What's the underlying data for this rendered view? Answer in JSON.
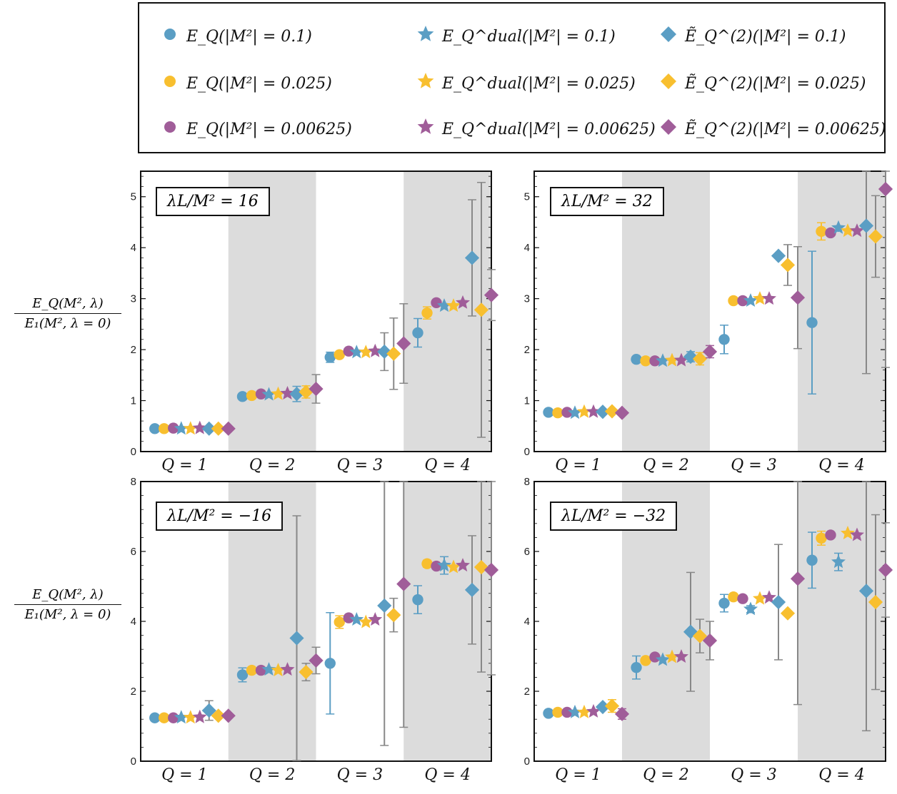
{
  "legend": [
    {
      "marker": "circle",
      "color": "#5B9EC4",
      "label": "E_Q(|M²| = 0.1)"
    },
    {
      "marker": "star",
      "color": "#5B9EC4",
      "label": "E_Q^dual(|M²| = 0.1)"
    },
    {
      "marker": "diamond",
      "color": "#5B9EC4",
      "label": "Ẽ_Q^(2)(|M²| = 0.1)"
    },
    {
      "marker": "circle",
      "color": "#F8BF2F",
      "label": "E_Q(|M²| = 0.025)"
    },
    {
      "marker": "star",
      "color": "#F8BF2F",
      "label": "E_Q^dual(|M²| = 0.025)"
    },
    {
      "marker": "diamond",
      "color": "#F8BF2F",
      "label": "Ẽ_Q^(2)(|M²| = 0.025)"
    },
    {
      "marker": "circle",
      "color": "#A05D99",
      "label": "E_Q(|M²| = 0.00625)"
    },
    {
      "marker": "star",
      "color": "#A05D99",
      "label": "E_Q^dual(|M²| = 0.00625)"
    },
    {
      "marker": "diamond",
      "color": "#A05D99",
      "label": "Ẽ_Q^(2)(|M²| = 0.00625)"
    }
  ],
  "y_axis_label": {
    "numerator": "E_Q(M², λ)",
    "denominator": "E₁(M², λ = 0)"
  },
  "colors": {
    "blue": "#5B9EC4",
    "yellow": "#F8BF2F",
    "purple": "#A05D99",
    "shade": "#DCDCDC",
    "errbar": "#888888"
  },
  "chart_data": [
    {
      "type": "scatter",
      "title": "λL/M² = 16",
      "xlabel": "",
      "ylabel": "E_Q(M², λ) / E₁(M², λ = 0)",
      "categories": [
        "Q = 1",
        "Q = 2",
        "Q = 3",
        "Q = 4"
      ],
      "ylim": [
        0,
        5.5
      ],
      "yticks": [
        0,
        1,
        2,
        3,
        4,
        5
      ],
      "series": [
        {
          "name": "E_Q(|M²| = 0.1)",
          "values": [
            0.45,
            1.08,
            1.85,
            2.33
          ],
          "errors": [
            0.02,
            0.02,
            0.1,
            0.28
          ]
        },
        {
          "name": "E_Q(|M²| = 0.025)",
          "values": [
            0.45,
            1.1,
            1.9,
            2.72
          ],
          "errors": [
            0.02,
            0.02,
            0.03,
            0.12
          ]
        },
        {
          "name": "E_Q(|M²| = 0.00625)",
          "values": [
            0.46,
            1.13,
            1.97,
            2.92
          ],
          "errors": [
            0.01,
            0.01,
            0.02,
            0.02
          ]
        },
        {
          "name": "E_Q^dual(|M²| = 0.1)",
          "values": [
            0.45,
            1.12,
            1.95,
            2.86
          ],
          "errors": [
            0.01,
            0.01,
            0.01,
            0.02
          ]
        },
        {
          "name": "E_Q^dual(|M²| = 0.025)",
          "values": [
            0.45,
            1.13,
            1.95,
            2.86
          ],
          "errors": [
            0.01,
            0.01,
            0.01,
            0.02
          ]
        },
        {
          "name": "E_Q^dual(|M²| = 0.00625)",
          "values": [
            0.46,
            1.14,
            1.97,
            2.92
          ],
          "errors": [
            0.01,
            0.01,
            0.01,
            0.02
          ]
        },
        {
          "name": "Ẽ_Q^(2)(|M²| = 0.1)",
          "values": [
            0.45,
            1.13,
            1.96,
            3.8
          ],
          "errors": [
            0.01,
            0.15,
            0.37,
            1.14
          ]
        },
        {
          "name": "Ẽ_Q^(2)(|M²| = 0.025)",
          "values": [
            0.45,
            1.17,
            1.92,
            2.78
          ],
          "errors": [
            0.01,
            0.12,
            0.7,
            2.5
          ]
        },
        {
          "name": "Ẽ_Q^(2)(|M²| = 0.00625)",
          "values": [
            0.45,
            1.23,
            2.12,
            3.07
          ],
          "errors": [
            0.01,
            0.28,
            0.78,
            0.5
          ]
        }
      ]
    },
    {
      "type": "scatter",
      "title": "λL/M² = 32",
      "xlabel": "",
      "ylabel": "",
      "categories": [
        "Q = 1",
        "Q = 2",
        "Q = 3",
        "Q = 4"
      ],
      "ylim": [
        0,
        5.5
      ],
      "yticks": [
        0,
        1,
        2,
        3,
        4,
        5
      ],
      "series": [
        {
          "name": "E_Q(|M²| = 0.1)",
          "values": [
            0.77,
            1.81,
            2.2,
            2.53
          ],
          "errors": [
            0.01,
            0.04,
            0.28,
            1.4
          ]
        },
        {
          "name": "E_Q(|M²| = 0.025)",
          "values": [
            0.76,
            1.78,
            2.96,
            4.32
          ],
          "errors": [
            0.01,
            0.03,
            0.06,
            0.17
          ]
        },
        {
          "name": "E_Q(|M²| = 0.00625)",
          "values": [
            0.77,
            1.78,
            2.96,
            4.29
          ],
          "errors": [
            0.01,
            0.02,
            0.02,
            0.04
          ]
        },
        {
          "name": "E_Q^dual(|M²| = 0.1)",
          "values": [
            0.76,
            1.78,
            2.96,
            4.39
          ],
          "errors": [
            0.01,
            0.01,
            0.01,
            0.08
          ]
        },
        {
          "name": "E_Q^dual(|M²| = 0.025)",
          "values": [
            0.78,
            1.79,
            3.0,
            4.33
          ],
          "errors": [
            0.01,
            0.01,
            0.01,
            0.02
          ]
        },
        {
          "name": "E_Q^dual(|M²| = 0.00625)",
          "values": [
            0.78,
            1.79,
            3.0,
            4.33
          ],
          "errors": [
            0.01,
            0.01,
            0.01,
            0.02
          ]
        },
        {
          "name": "Ẽ_Q^(2)(|M²| = 0.1)",
          "values": [
            0.78,
            1.86,
            3.84,
            4.43
          ],
          "errors": [
            0.01,
            0.1,
            0.08,
            2.9
          ]
        },
        {
          "name": "Ẽ_Q^(2)(|M²| = 0.025)",
          "values": [
            0.79,
            1.82,
            3.66,
            4.22
          ],
          "errors": [
            0.01,
            0.12,
            0.4,
            0.8
          ]
        },
        {
          "name": "Ẽ_Q^(2)(|M²| = 0.00625)",
          "values": [
            0.76,
            1.96,
            3.02,
            5.15
          ],
          "errors": [
            0.02,
            0.12,
            1.0,
            3.5
          ]
        }
      ]
    },
    {
      "type": "scatter",
      "title": "λL/M² = −16",
      "xlabel": "",
      "ylabel": "E_Q(M², λ) / E₁(M², λ = 0)",
      "categories": [
        "Q = 1",
        "Q = 2",
        "Q = 3",
        "Q = 4"
      ],
      "ylim": [
        0,
        8
      ],
      "yticks": [
        0,
        2,
        4,
        6,
        8
      ],
      "series": [
        {
          "name": "E_Q(|M²| = 0.1)",
          "values": [
            1.24,
            2.47,
            2.8,
            4.62
          ],
          "errors": [
            0.01,
            0.2,
            1.45,
            0.4
          ]
        },
        {
          "name": "E_Q(|M²| = 0.025)",
          "values": [
            1.24,
            2.6,
            3.98,
            5.65
          ],
          "errors": [
            0.02,
            0.05,
            0.18,
            0.1
          ]
        },
        {
          "name": "E_Q(|M²| = 0.00625)",
          "values": [
            1.24,
            2.6,
            4.1,
            5.58
          ],
          "errors": [
            0.01,
            0.03,
            0.04,
            0.05
          ]
        },
        {
          "name": "E_Q^dual(|M²| = 0.1)",
          "values": [
            1.25,
            2.62,
            4.05,
            5.6
          ],
          "errors": [
            0.01,
            0.03,
            0.02,
            0.25
          ]
        },
        {
          "name": "E_Q^dual(|M²| = 0.025)",
          "values": [
            1.25,
            2.6,
            3.98,
            5.55
          ],
          "errors": [
            0.01,
            0.03,
            0.02,
            0.05
          ]
        },
        {
          "name": "E_Q^dual(|M²| = 0.00625)",
          "values": [
            1.26,
            2.62,
            4.05,
            5.6
          ],
          "errors": [
            0.01,
            0.03,
            0.02,
            0.05
          ]
        },
        {
          "name": "Ẽ_Q^(2)(|M²| = 0.1)",
          "values": [
            1.45,
            3.52,
            4.45,
            4.9
          ],
          "errors": [
            0.28,
            3.5,
            4.0,
            1.55
          ]
        },
        {
          "name": "Ẽ_Q^(2)(|M²| = 0.025)",
          "values": [
            1.3,
            2.55,
            4.18,
            5.55
          ],
          "errors": [
            0.05,
            0.25,
            0.48,
            3.0
          ]
        },
        {
          "name": "Ẽ_Q^(2)(|M²| = 0.00625)",
          "values": [
            1.3,
            2.88,
            5.07,
            5.47
          ],
          "errors": [
            0.05,
            0.38,
            4.1,
            3.0
          ]
        }
      ]
    },
    {
      "type": "scatter",
      "title": "λL/M² = −32",
      "xlabel": "",
      "ylabel": "",
      "categories": [
        "Q = 1",
        "Q = 2",
        "Q = 3",
        "Q = 4"
      ],
      "ylim": [
        0,
        8
      ],
      "yticks": [
        0,
        2,
        4,
        6,
        8
      ],
      "series": [
        {
          "name": "E_Q(|M²| = 0.1)",
          "values": [
            1.37,
            2.68,
            4.52,
            5.75
          ],
          "errors": [
            0.01,
            0.33,
            0.25,
            0.8
          ]
        },
        {
          "name": "E_Q(|M²| = 0.025)",
          "values": [
            1.4,
            2.88,
            4.7,
            6.38
          ],
          "errors": [
            0.02,
            0.07,
            0.09,
            0.2
          ]
        },
        {
          "name": "E_Q(|M²| = 0.00625)",
          "values": [
            1.4,
            2.98,
            4.65,
            6.47
          ],
          "errors": [
            0.01,
            0.03,
            0.03,
            0.05
          ]
        },
        {
          "name": "E_Q^dual(|M²| = 0.1)",
          "values": [
            1.4,
            2.9,
            4.35,
            5.7
          ],
          "errors": [
            0.01,
            0.03,
            0.1,
            0.25
          ]
        },
        {
          "name": "E_Q^dual(|M²| = 0.025)",
          "values": [
            1.4,
            2.98,
            4.65,
            6.52
          ],
          "errors": [
            0.01,
            0.03,
            0.03,
            0.05
          ]
        },
        {
          "name": "E_Q^dual(|M²| = 0.00625)",
          "values": [
            1.42,
            2.99,
            4.68,
            6.47
          ],
          "errors": [
            0.01,
            0.03,
            0.03,
            0.04
          ]
        },
        {
          "name": "Ẽ_Q^(2)(|M²| = 0.1)",
          "values": [
            1.55,
            3.7,
            4.55,
            4.87
          ],
          "errors": [
            0.02,
            1.7,
            1.65,
            4.0
          ]
        },
        {
          "name": "Ẽ_Q^(2)(|M²| = 0.025)",
          "values": [
            1.58,
            3.58,
            4.23,
            4.55
          ],
          "errors": [
            0.18,
            0.48,
            0.08,
            2.5
          ]
        },
        {
          "name": "Ẽ_Q^(2)(|M²| = 0.00625)",
          "values": [
            1.35,
            3.45,
            5.22,
            5.47
          ],
          "errors": [
            0.15,
            0.55,
            3.6,
            1.35
          ]
        }
      ]
    }
  ]
}
